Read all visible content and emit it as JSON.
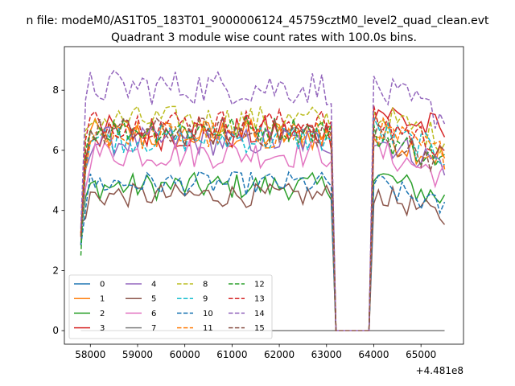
{
  "chart_data": {
    "type": "line",
    "suptitle": "n file: modeM0/AS1T05_183T01_9000006124_45759cztM0_level2_quad_clean.evt",
    "title": "Quadrant 3 module wise count rates with 100.0s bins.",
    "xlabel": "",
    "ylabel": "",
    "x_offset_label": "+4.481e8",
    "xlim": [
      57450,
      65900
    ],
    "ylim": [
      -0.45,
      9.45
    ],
    "x_ticks": [
      58000,
      59000,
      60000,
      61000,
      62000,
      63000,
      64000,
      65000
    ],
    "x_tick_labels": [
      "58000",
      "59000",
      "60000",
      "61000",
      "62000",
      "63000",
      "64000",
      "65000"
    ],
    "y_ticks": [
      0,
      2,
      4,
      6,
      8
    ],
    "y_tick_labels": [
      "0",
      "2",
      "4",
      "6",
      "8"
    ],
    "grid": false,
    "legend_placement": "lower-left",
    "legend_columns": 4,
    "x_range": {
      "start": 57800,
      "step": 100,
      "gap_start": 63300,
      "gap_end": 64000,
      "end": 65500
    },
    "series": [
      {
        "name": "0",
        "color": "#1f77b4",
        "dash": "solid",
        "kind": "zero"
      },
      {
        "name": "1",
        "color": "#ff7f0e",
        "dash": "solid",
        "kind": "high",
        "level": 6.5,
        "amp": 0.55,
        "post": 6.6
      },
      {
        "name": "2",
        "color": "#2ca02c",
        "dash": "solid",
        "kind": "low",
        "level": 4.8,
        "amp": 0.45,
        "post": 5.2
      },
      {
        "name": "3",
        "color": "#d62728",
        "dash": "solid",
        "kind": "high",
        "level": 6.6,
        "amp": 0.6,
        "post": 7.4
      },
      {
        "name": "4",
        "color": "#9467bd",
        "dash": "solid",
        "kind": "high",
        "level": 6.3,
        "amp": 0.5,
        "post": 6.4
      },
      {
        "name": "5",
        "color": "#8c564b",
        "dash": "solid",
        "kind": "low",
        "level": 4.5,
        "amp": 0.4,
        "post": 4.6
      },
      {
        "name": "6",
        "color": "#e377c2",
        "dash": "solid",
        "kind": "high",
        "level": 5.9,
        "amp": 0.5,
        "post": 6.0
      },
      {
        "name": "7",
        "color": "#7f7f7f",
        "dash": "solid",
        "kind": "zero"
      },
      {
        "name": "8",
        "color": "#bcbd22",
        "dash": "dashed",
        "kind": "high",
        "level": 7.0,
        "amp": 0.5,
        "post": 7.2
      },
      {
        "name": "9",
        "color": "#17becf",
        "dash": "dashed",
        "kind": "high",
        "level": 6.4,
        "amp": 0.5,
        "post": 6.7
      },
      {
        "name": "10",
        "color": "#1f77b4",
        "dash": "dashed",
        "kind": "low",
        "level": 4.9,
        "amp": 0.4,
        "post": 4.9
      },
      {
        "name": "11",
        "color": "#ff7f0e",
        "dash": "dashed",
        "kind": "high",
        "level": 6.5,
        "amp": 0.5,
        "post": 6.7
      },
      {
        "name": "12",
        "color": "#2ca02c",
        "dash": "dashed",
        "kind": "high",
        "level": 6.7,
        "amp": 0.45,
        "post": 6.5
      },
      {
        "name": "13",
        "color": "#d62728",
        "dash": "dashed",
        "kind": "high",
        "level": 6.9,
        "amp": 0.5,
        "post": 7.0
      },
      {
        "name": "14",
        "color": "#9467bd",
        "dash": "dashed",
        "kind": "high",
        "level": 8.1,
        "amp": 0.6,
        "post": 8.0
      },
      {
        "name": "15",
        "color": "#8c564b",
        "dash": "dashed",
        "kind": "high",
        "level": 6.6,
        "amp": 0.5,
        "post": 6.5
      }
    ]
  }
}
